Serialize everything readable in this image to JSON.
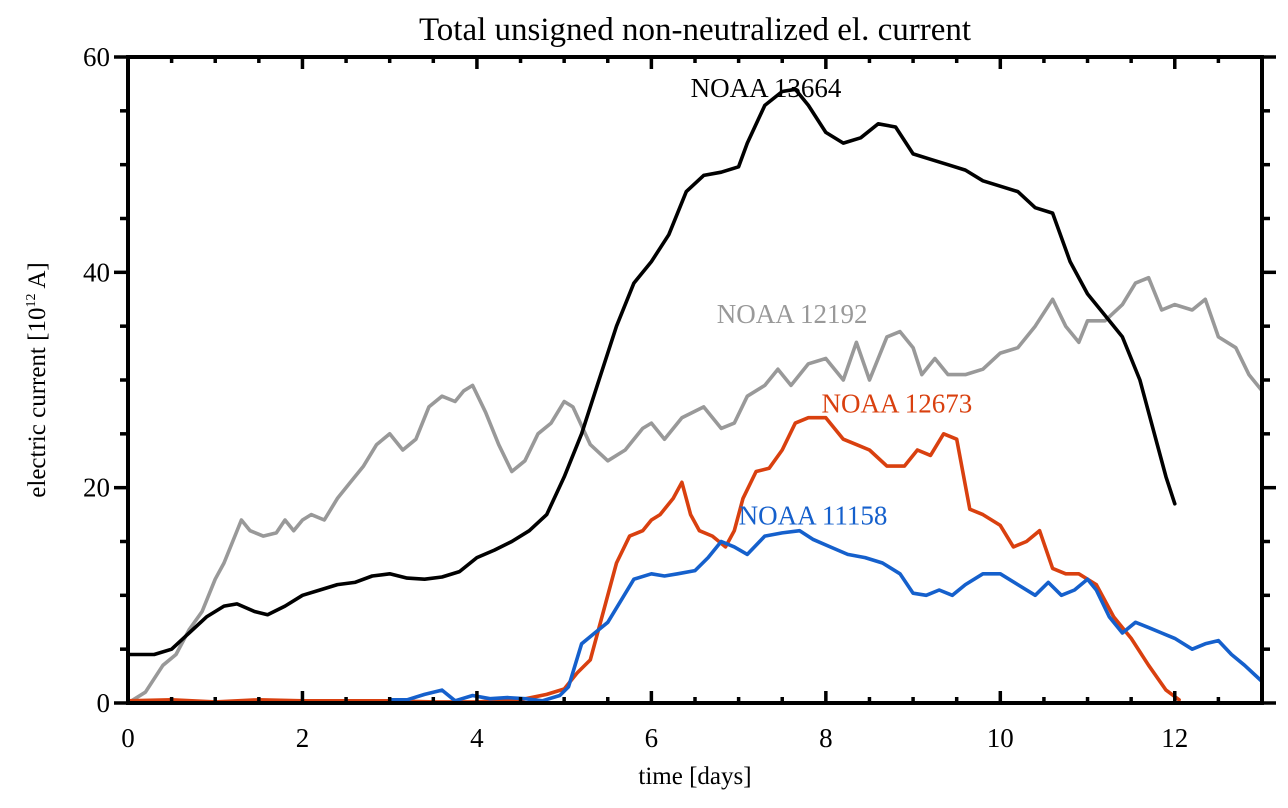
{
  "chart_data": {
    "type": "line",
    "title": "Total unsigned non-neutralized el. current",
    "xlabel": "time [days]",
    "ylabel": "electric current [10",
    "ylabel_exponent": "12",
    "ylabel_suffix": " A]",
    "xlim": [
      0,
      13
    ],
    "ylim": [
      0,
      60
    ],
    "x_major_ticks": [
      0,
      2,
      4,
      6,
      8,
      10,
      12
    ],
    "x_tick_labels": [
      "0",
      "2",
      "4",
      "6",
      "8",
      "10",
      "12"
    ],
    "x_minor_step": 0.5,
    "y_major_ticks": [
      0,
      20,
      40,
      60
    ],
    "y_tick_labels": [
      "0",
      "20",
      "40",
      "60"
    ],
    "y_minor_step": 5,
    "grid": false,
    "legend": "inline labels",
    "series": [
      {
        "name": "NOAA 13664",
        "color": "#000000",
        "label_at": [
          6.45,
          56.3
        ],
        "x": [
          0,
          0.3,
          0.5,
          0.7,
          0.9,
          1.1,
          1.25,
          1.45,
          1.6,
          1.8,
          2.0,
          2.2,
          2.4,
          2.6,
          2.8,
          3.0,
          3.2,
          3.4,
          3.6,
          3.8,
          4.0,
          4.2,
          4.4,
          4.6,
          4.8,
          5.0,
          5.2,
          5.4,
          5.6,
          5.8,
          6.0,
          6.2,
          6.4,
          6.6,
          6.8,
          7.0,
          7.1,
          7.3,
          7.5,
          7.65,
          7.8,
          8.0,
          8.2,
          8.4,
          8.6,
          8.8,
          9.0,
          9.2,
          9.4,
          9.6,
          9.8,
          10.0,
          10.2,
          10.4,
          10.6,
          10.8,
          11.0,
          11.2,
          11.4,
          11.6,
          11.8,
          11.9,
          12.0
        ],
        "y": [
          4.5,
          4.5,
          5.0,
          6.5,
          8.0,
          9.0,
          9.2,
          8.5,
          8.2,
          9.0,
          10.0,
          10.5,
          11.0,
          11.2,
          11.8,
          12.0,
          11.6,
          11.5,
          11.7,
          12.2,
          13.5,
          14.2,
          15.0,
          16.0,
          17.5,
          21.0,
          25.0,
          30.0,
          35.0,
          39.0,
          41.0,
          43.5,
          47.5,
          49.0,
          49.3,
          49.8,
          52.0,
          55.5,
          56.8,
          57.0,
          55.5,
          53.0,
          52.0,
          52.5,
          53.8,
          53.5,
          51.0,
          50.5,
          50.0,
          49.5,
          48.5,
          48.0,
          47.5,
          46.0,
          45.5,
          41.0,
          38.0,
          36.0,
          34.0,
          30.0,
          24.0,
          21.0,
          18.5
        ]
      },
      {
        "name": "NOAA 12192",
        "color": "#999999",
        "label_at": [
          6.75,
          35.3
        ],
        "x": [
          0,
          0.2,
          0.4,
          0.55,
          0.7,
          0.85,
          1.0,
          1.1,
          1.2,
          1.3,
          1.4,
          1.55,
          1.7,
          1.8,
          1.9,
          2.0,
          2.1,
          2.25,
          2.4,
          2.55,
          2.7,
          2.85,
          3.0,
          3.15,
          3.3,
          3.45,
          3.6,
          3.75,
          3.85,
          3.95,
          4.1,
          4.25,
          4.4,
          4.55,
          4.7,
          4.85,
          5.0,
          5.1,
          5.3,
          5.5,
          5.7,
          5.9,
          6.0,
          6.15,
          6.35,
          6.6,
          6.8,
          6.95,
          7.1,
          7.3,
          7.45,
          7.6,
          7.8,
          8.0,
          8.2,
          8.35,
          8.5,
          8.7,
          8.85,
          9.0,
          9.1,
          9.25,
          9.4,
          9.6,
          9.8,
          10.0,
          10.2,
          10.4,
          10.6,
          10.75,
          10.9,
          11.0,
          11.2,
          11.4,
          11.55,
          11.7,
          11.85,
          12.0,
          12.2,
          12.35,
          12.5,
          12.7,
          12.85,
          13.0
        ],
        "y": [
          0,
          1.0,
          3.5,
          4.5,
          6.8,
          8.5,
          11.5,
          13.0,
          15.0,
          17.0,
          16.0,
          15.5,
          15.8,
          17.0,
          16.0,
          17.0,
          17.5,
          17.0,
          19.0,
          20.5,
          22.0,
          24.0,
          25.0,
          23.5,
          24.5,
          27.5,
          28.5,
          28.0,
          29.0,
          29.5,
          27.0,
          24.0,
          21.5,
          22.5,
          25.0,
          26.0,
          28.0,
          27.5,
          24.0,
          22.5,
          23.5,
          25.5,
          26.0,
          24.5,
          26.5,
          27.5,
          25.5,
          26.0,
          28.5,
          29.5,
          31.0,
          29.5,
          31.5,
          32.0,
          30.0,
          33.5,
          30.0,
          34.0,
          34.5,
          33.0,
          30.5,
          32.0,
          30.5,
          30.5,
          31.0,
          32.5,
          33.0,
          35.0,
          37.5,
          35.0,
          33.5,
          35.5,
          35.5,
          37.0,
          39.0,
          39.5,
          36.5,
          37.0,
          36.5,
          37.5,
          34.0,
          33.0,
          30.5,
          29.0
        ]
      },
      {
        "name": "NOAA 12673",
        "color": "#d9400f",
        "label_at": [
          7.95,
          27.0
        ],
        "x": [
          0,
          0.5,
          1.0,
          1.5,
          2.0,
          2.5,
          3.0,
          3.5,
          4.0,
          4.5,
          4.8,
          5.0,
          5.15,
          5.3,
          5.45,
          5.6,
          5.75,
          5.9,
          6.0,
          6.1,
          6.25,
          6.35,
          6.45,
          6.55,
          6.7,
          6.85,
          6.95,
          7.05,
          7.2,
          7.35,
          7.5,
          7.65,
          7.8,
          8.0,
          8.2,
          8.35,
          8.5,
          8.7,
          8.9,
          9.05,
          9.2,
          9.35,
          9.5,
          9.65,
          9.8,
          10.0,
          10.15,
          10.3,
          10.45,
          10.6,
          10.75,
          10.9,
          11.1,
          11.3,
          11.5,
          11.7,
          11.9,
          12.05
        ],
        "y": [
          0.2,
          0.3,
          0.1,
          0.3,
          0.2,
          0.2,
          0.2,
          0.1,
          0.1,
          0.3,
          0.8,
          1.3,
          2.8,
          4.0,
          8.5,
          13.0,
          15.5,
          16.0,
          17.0,
          17.5,
          19.0,
          20.5,
          17.5,
          16.0,
          15.5,
          14.5,
          16.0,
          19.0,
          21.5,
          21.8,
          23.5,
          26.0,
          26.5,
          26.5,
          24.5,
          24.0,
          23.5,
          22.0,
          22.0,
          23.5,
          23.0,
          25.0,
          24.5,
          18.0,
          17.5,
          16.5,
          14.5,
          15.0,
          16.0,
          12.5,
          12.0,
          12.0,
          11.0,
          8.0,
          6.0,
          3.5,
          1.2,
          0.3
        ]
      },
      {
        "name": "NOAA 11158",
        "color": "#1560cc",
        "label_at": [
          7.0,
          16.6
        ],
        "x": [
          3.0,
          3.2,
          3.4,
          3.6,
          3.75,
          3.95,
          4.15,
          4.35,
          4.55,
          4.75,
          4.95,
          5.05,
          5.2,
          5.35,
          5.5,
          5.65,
          5.8,
          6.0,
          6.15,
          6.3,
          6.5,
          6.65,
          6.8,
          6.95,
          7.1,
          7.3,
          7.5,
          7.7,
          7.85,
          8.05,
          8.25,
          8.45,
          8.65,
          8.85,
          9.0,
          9.15,
          9.3,
          9.45,
          9.6,
          9.8,
          10.0,
          10.2,
          10.4,
          10.55,
          10.7,
          10.85,
          11.0,
          11.1,
          11.25,
          11.4,
          11.55,
          11.7,
          11.85,
          12.0,
          12.2,
          12.35,
          12.5,
          12.65,
          12.8,
          13.0
        ],
        "y": [
          0.3,
          0.3,
          0.8,
          1.2,
          0.2,
          0.7,
          0.4,
          0.5,
          0.4,
          0.2,
          0.7,
          1.5,
          5.5,
          6.5,
          7.5,
          9.5,
          11.5,
          12.0,
          11.8,
          12.0,
          12.3,
          13.5,
          15.0,
          14.5,
          13.8,
          15.5,
          15.8,
          16.0,
          15.2,
          14.5,
          13.8,
          13.5,
          13.0,
          12.0,
          10.2,
          10.0,
          10.5,
          10.0,
          11.0,
          12.0,
          12.0,
          11.0,
          10.0,
          11.2,
          10.0,
          10.5,
          11.5,
          10.5,
          8.0,
          6.5,
          7.5,
          7.0,
          6.5,
          6.0,
          5.0,
          5.5,
          5.8,
          4.5,
          3.5,
          2.0
        ]
      }
    ]
  }
}
